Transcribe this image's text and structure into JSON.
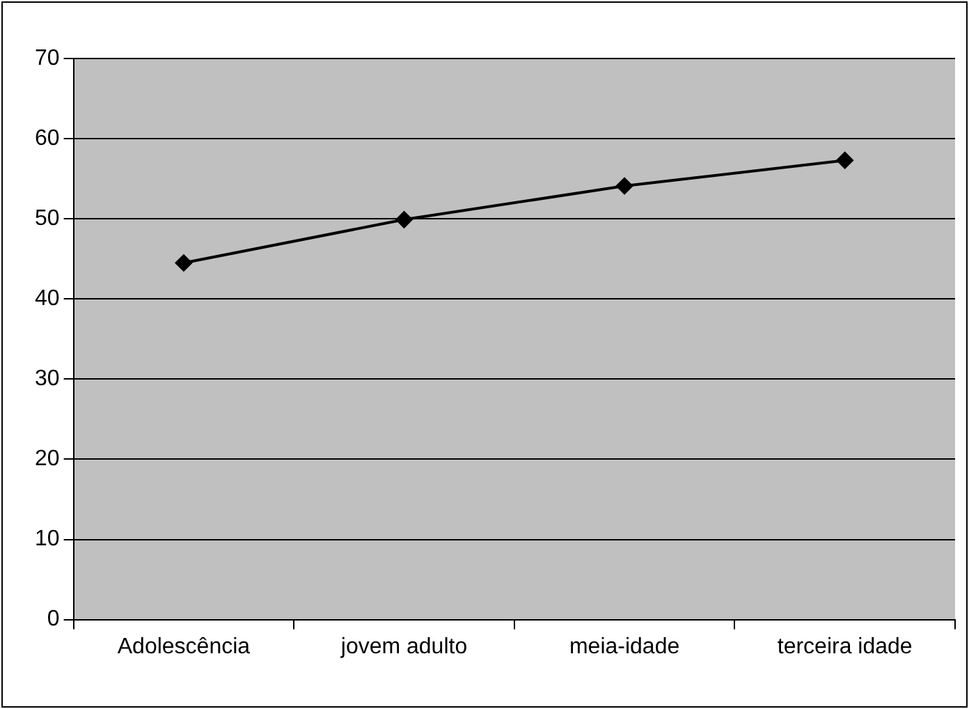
{
  "chart_data": {
    "type": "line",
    "categories": [
      "Adolescência",
      "jovem adulto",
      "meia-idade",
      "terceira idade"
    ],
    "series": [
      {
        "color": "#000000",
        "values": [
          44.5,
          49.9,
          54.1,
          57.3
        ]
      }
    ],
    "ylim": [
      0,
      70
    ],
    "yticks": [
      0,
      10,
      20,
      30,
      40,
      50,
      60,
      70
    ],
    "grid": "y",
    "marker": "diamond",
    "line_style": "solid",
    "legend": false
  }
}
